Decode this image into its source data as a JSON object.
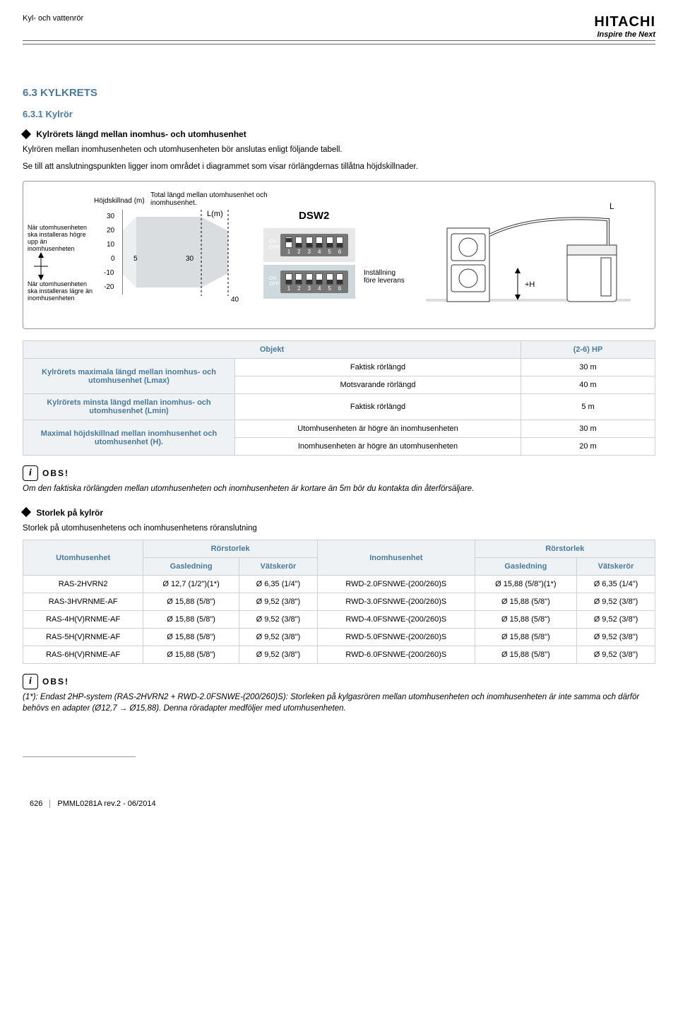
{
  "header": {
    "left": "Kyl- och vattenrör",
    "brand": "HITACHI",
    "tagline": "Inspire the Next"
  },
  "sec_num": "6.3  KYLKRETS",
  "subsec_num": "6.3.1  Kylrör",
  "subhead1": "Kylrörets längd mellan inomhus- och utomhusenhet",
  "para1": "Kylrören mellan inomhusenheten och utomhusenheten bör anslutas enligt följande tabell.",
  "para2": "Se till att anslutningspunkten ligger inom området i diagrammet som visar rörlängdernas tillåtna höjdskillnader.",
  "diagram": {
    "h_label": "Höjdskillnad (m)",
    "top_caption": "Total längd mellan utomhusenhet och inomhusenhet.",
    "lm_label": "L(m)",
    "note_upper": "När utomhusenheten ska installeras högre upp än inomhusenheten",
    "note_lower": "När utomhusenheten ska installeras lägre än inomhusenheten",
    "y_ticks": [
      "30",
      "20",
      "10",
      "0",
      "-10",
      "-20"
    ],
    "x_ticks": [
      "5",
      "30",
      "40"
    ],
    "dsw_title": "DSW2",
    "setting_label": "Inställning före leverans",
    "plus_h": "+H",
    "L_label": "L",
    "dip1": [
      1,
      0,
      0,
      0,
      0,
      0
    ],
    "dip2": [
      0,
      0,
      0,
      0,
      0,
      0
    ],
    "on": "ON",
    "off": "OFF"
  },
  "table1": {
    "h_obj": "Objekt",
    "h_hp": "(2-6) HP",
    "r1a": "Kylrörets maximala längd mellan inomhus- och utomhusenhet (Lmax)",
    "r1b1": "Faktisk rörlängd",
    "r1c1": "30 m",
    "r1b2": "Motsvarande rörlängd",
    "r1c2": "40 m",
    "r2a": "Kylrörets minsta längd mellan inomhus- och utomhusenhet (Lmin)",
    "r2b": "Faktisk rörlängd",
    "r2c": "5 m",
    "r3a": "Maximal höjdskillnad mellan inomhusenhet och utomhusenhet (H).",
    "r3b1": "Utomhusenheten är högre än inomhusenheten",
    "r3c1": "30 m",
    "r3b2": "Inomhusenheten är högre än utomhusenheten",
    "r3c2": "20 m"
  },
  "obs_label": "OBS!",
  "note1": "Om den faktiska rörlängden mellan utomhusenheten och inomhusenheten är kortare än 5m bör du kontakta din återförsäljare.",
  "subhead2": "Storlek på kylrör",
  "para3": "Storlek på utomhusenhetens och inomhusenhetens röranslutning",
  "table2": {
    "h_out": "Utomhusenhet",
    "h_size": "Rörstorlek",
    "h_in": "Inomhusenhet",
    "h_gas": "Gasledning",
    "h_liq": "Vätskerör",
    "rows": [
      [
        "RAS-2HVRN2",
        "Ø 12,7 (1/2\")(1*)",
        "Ø 6,35 (1/4\")",
        "RWD-2.0FSNWE-(200/260)S",
        "Ø 15,88 (5/8\")(1*)",
        "Ø 6,35 (1/4\")"
      ],
      [
        "RAS-3HVRNME-AF",
        "Ø 15,88 (5/8\")",
        "Ø 9,52 (3/8\")",
        "RWD-3.0FSNWE-(200/260)S",
        "Ø 15,88 (5/8\")",
        "Ø 9,52 (3/8\")"
      ],
      [
        "RAS-4H(V)RNME-AF",
        "Ø 15,88 (5/8\")",
        "Ø 9,52 (3/8\")",
        "RWD-4.0FSNWE-(200/260)S",
        "Ø 15,88 (5/8\")",
        "Ø 9,52 (3/8\")"
      ],
      [
        "RAS-5H(V)RNME-AF",
        "Ø 15,88 (5/8\")",
        "Ø 9,52 (3/8\")",
        "RWD-5.0FSNWE-(200/260)S",
        "Ø 15,88 (5/8\")",
        "Ø 9,52 (3/8\")"
      ],
      [
        "RAS-6H(V)RNME-AF",
        "Ø 15,88 (5/8\")",
        "Ø 9,52 (3/8\")",
        "RWD-6.0FSNWE-(200/260)S",
        "Ø 15,88 (5/8\")",
        "Ø 9,52 (3/8\")"
      ]
    ]
  },
  "note2": "(1*): Endast 2HP-system (RAS-2HVRN2 + RWD-2.0FSNWE-(200/260)S): Storleken på kylgasrören mellan utomhusenheten och inomhusenheten är inte samma och därför behövs en adapter (Ø12,7 → Ø15,88). Denna röradapter medföljer med utomhusenheten.",
  "footer": {
    "page": "626",
    "rev": "PMML0281A rev.2 - 06/2014"
  },
  "colors": {
    "accent": "#4a7a9c",
    "th_bg": "#eef2f4",
    "border": "#d0d0d0",
    "chart_fill": "#d9dde0"
  }
}
